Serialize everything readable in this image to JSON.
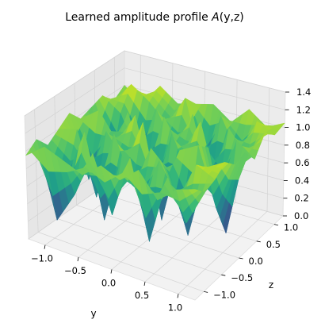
{
  "chart_data": {
    "type": "surface",
    "title": "Learned amplitude profile A(y,z)",
    "title_parts": {
      "prefix": "Learned amplitude profile ",
      "func": "A",
      "args": "(y,z)"
    },
    "xlabel": "y",
    "ylabel": "z",
    "zlabel": "",
    "colormap": "viridis",
    "y_range": [
      -1.25,
      1.25
    ],
    "z_range": [
      -1.25,
      1.25
    ],
    "amp_range": [
      0.0,
      1.4
    ],
    "y_ticks": [
      "−1.0",
      "−0.5",
      "0.0",
      "0.5",
      "1.0"
    ],
    "z_ticks": [
      "−1.0",
      "−0.5",
      "0.0",
      "0.5",
      "1.0"
    ],
    "amp_ticks": [
      "0.0",
      "0.2",
      "0.4",
      "0.6",
      "0.8",
      "1.0",
      "1.2",
      "1.4"
    ],
    "grid": true,
    "y": [
      -1.25,
      -0.97,
      -0.69,
      -0.42,
      -0.14,
      0.14,
      0.42,
      0.69,
      0.97,
      1.25
    ],
    "z": [
      -1.25,
      -0.97,
      -0.69,
      -0.42,
      -0.14,
      0.14,
      0.42,
      0.69,
      0.97,
      1.25
    ],
    "amplitude": [
      [
        0.95,
        1.05,
        0.9,
        1.0,
        1.1,
        0.95,
        1.0,
        1.05,
        0.9,
        1.0
      ],
      [
        1.1,
        0.2,
        0.6,
        1.05,
        0.4,
        1.1,
        0.3,
        0.9,
        1.15,
        0.85
      ],
      [
        1.0,
        0.55,
        1.15,
        0.35,
        1.0,
        0.8,
        1.05,
        0.45,
        1.0,
        1.1
      ],
      [
        0.9,
        1.05,
        0.25,
        1.1,
        0.7,
        1.15,
        0.4,
        1.05,
        0.8,
        0.95
      ],
      [
        1.05,
        0.45,
        1.0,
        0.6,
        1.2,
        0.3,
        1.1,
        0.65,
        1.15,
        1.0
      ],
      [
        0.95,
        1.1,
        0.55,
        1.05,
        0.2,
        1.05,
        0.75,
        1.1,
        0.4,
        1.05
      ],
      [
        1.1,
        0.3,
        1.05,
        0.85,
        1.0,
        0.6,
        1.15,
        0.3,
        1.05,
        0.9
      ],
      [
        0.85,
        1.0,
        0.7,
        0.25,
        1.1,
        1.0,
        0.45,
        1.05,
        0.65,
        1.1
      ],
      [
        1.0,
        0.6,
        1.1,
        1.0,
        0.5,
        0.15,
        1.05,
        0.8,
        1.1,
        0.95
      ],
      [
        1.05,
        0.95,
        1.0,
        1.1,
        1.0,
        1.05,
        0.9,
        1.1,
        1.0,
        1.05
      ]
    ]
  }
}
